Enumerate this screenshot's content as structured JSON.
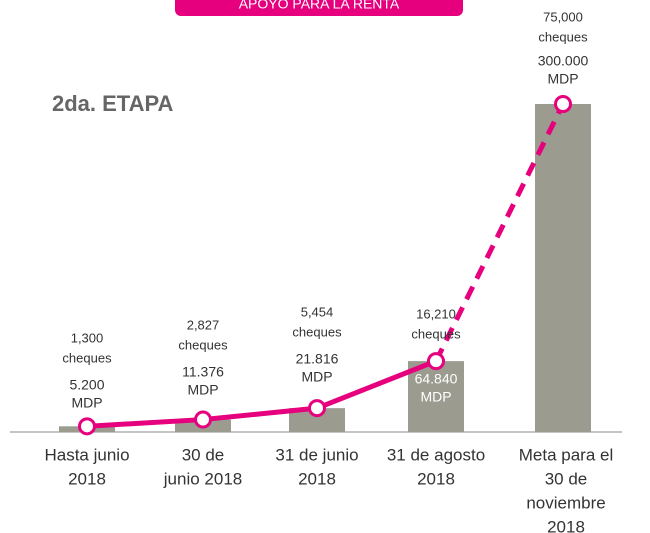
{
  "banner": "APOYO PARA LA RENTA",
  "chart_data": {
    "type": "bar",
    "title": "2da. ETAPA",
    "categories": [
      [
        "Hasta junio",
        "2018"
      ],
      [
        "30 de",
        "junio 2018"
      ],
      [
        "31 de junio",
        "2018"
      ],
      [
        "31 de agosto",
        "2018"
      ],
      [
        "Meta para el",
        "30 de",
        "noviembre",
        "2018"
      ]
    ],
    "series": [
      {
        "name": "MDP",
        "color": "#9b9c8f",
        "values": [
          5.2,
          11.376,
          21.816,
          64.84,
          300
        ],
        "value_labels": [
          "5.200",
          "11.376",
          "21.816",
          "64.840",
          "300.000"
        ]
      }
    ],
    "line_color": "#e6007e",
    "cheques_unit": "cheques",
    "cheques_labels": [
      "1,300",
      "2,827",
      "5,454",
      "16,210",
      "75,000"
    ],
    "ylim": [
      0,
      300
    ]
  }
}
